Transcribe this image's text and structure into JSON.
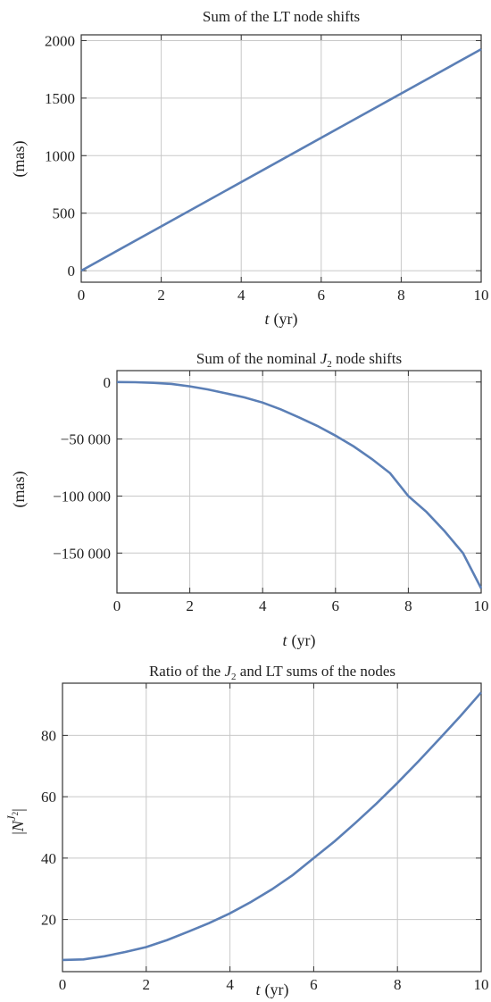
{
  "chart_data": [
    {
      "type": "line",
      "title": "Sum of the LT node shifts",
      "xlabel_var": "t",
      "xlabel_unit": "(yr)",
      "ylabel": "(mas)",
      "xlim": [
        0,
        10
      ],
      "ylim": [
        -100,
        2050
      ],
      "xticks": [
        0,
        2,
        4,
        6,
        8,
        10
      ],
      "xtick_labels": [
        "0",
        "2",
        "4",
        "6",
        "8",
        "10"
      ],
      "yticks": [
        0,
        500,
        1000,
        1500,
        2000
      ],
      "ytick_labels": [
        "0",
        "500",
        "1000",
        "1500",
        "2000"
      ],
      "grid": true,
      "series": [
        {
          "x": [
            0,
            10
          ],
          "y": [
            0,
            1925
          ]
        }
      ]
    },
    {
      "type": "line",
      "title_pre": "Sum of the nominal ",
      "title_var": "J",
      "title_sub": "2",
      "title_post": " node shifts",
      "xlabel_var": "t",
      "xlabel_unit": "(yr)",
      "ylabel": "(mas)",
      "xlim": [
        0,
        10
      ],
      "ylim": [
        -185000,
        10000
      ],
      "xticks": [
        0,
        2,
        4,
        6,
        8,
        10
      ],
      "xtick_labels": [
        "0",
        "2",
        "4",
        "6",
        "8",
        "10"
      ],
      "yticks": [
        0,
        -50000,
        -100000,
        -150000
      ],
      "ytick_labels": [
        "0",
        "−50 000",
        "−100 000",
        "−150 000"
      ],
      "grid": true,
      "series": [
        {
          "x": [
            0,
            0.5,
            1,
            1.5,
            2,
            2.5,
            3,
            3.5,
            4,
            4.5,
            5,
            5.5,
            6,
            6.5,
            7,
            7.5,
            8,
            8.5,
            9,
            9.5,
            10
          ],
          "y": [
            0,
            -180,
            -700,
            -1700,
            -3800,
            -6500,
            -10000,
            -13500,
            -18000,
            -24000,
            -31000,
            -38500,
            -47000,
            -56500,
            -67500,
            -80000,
            -100000,
            -114000,
            -131000,
            -150000,
            -181000
          ]
        }
      ]
    },
    {
      "type": "line",
      "title_pre": "Ratio of the ",
      "title_var": "J",
      "title_sub": "2",
      "title_post": " and LT sums of the nodes",
      "xlabel_var": "t",
      "xlabel_unit": "(yr)",
      "ylabel_var": "N",
      "ylabel_sup_var": "J",
      "ylabel_sup_sub": "2",
      "xlim": [
        0,
        10
      ],
      "ylim": [
        3,
        97
      ],
      "xticks": [
        0,
        2,
        4,
        6,
        8,
        10
      ],
      "xtick_labels": [
        "0",
        "2",
        "4",
        "6",
        "8",
        "10"
      ],
      "yticks": [
        20,
        40,
        60,
        80
      ],
      "ytick_labels": [
        "20",
        "40",
        "60",
        "80"
      ],
      "grid": true,
      "series": [
        {
          "x": [
            0,
            0.5,
            1,
            1.5,
            2,
            2.5,
            3,
            3.5,
            4,
            4.5,
            5,
            5.5,
            6,
            6.5,
            7,
            7.5,
            8,
            8.5,
            9,
            9.5,
            10
          ],
          "y": [
            6.8,
            7.0,
            8.0,
            9.4,
            11.0,
            13.3,
            16.0,
            18.8,
            22.0,
            25.7,
            29.8,
            34.5,
            40.0,
            45.5,
            51.5,
            57.8,
            64.5,
            71.5,
            78.8,
            86.2,
            94.0
          ]
        }
      ]
    }
  ]
}
